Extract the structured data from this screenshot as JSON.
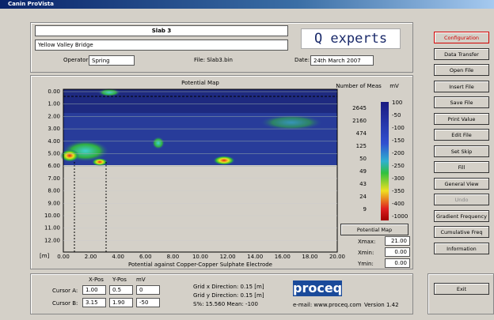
{
  "window": {
    "title": "Canin ProVista"
  },
  "header": {
    "title": "Slab 3",
    "structure": "Yellow Valley Bridge",
    "operator_label": "Operator:",
    "operator": "Spring",
    "file": "File: Slab3.bin",
    "date_label": "Date:",
    "date": "24th March 2007",
    "logo": "Q experts"
  },
  "map": {
    "title": "Potential Map",
    "yticks": [
      "0.00",
      "1.00",
      "2.00",
      "3.00",
      "4.00",
      "5.00",
      "6.00",
      "7.00",
      "8.00",
      "9.00",
      "10.00",
      "11.00",
      "12.00"
    ],
    "y_unit": "[m]",
    "xticks": [
      "0.00",
      "2.00",
      "4.00",
      "6.00",
      "8.00",
      "10.00",
      "12.00",
      "14.00",
      "16.00",
      "18.00",
      "20.00"
    ],
    "xlabel": "Potential against Copper-Copper Sulphate Electrode",
    "legend_count_title": "Number of Meas",
    "legend_unit_title": "mV",
    "counts": [
      "2645",
      "2160",
      "474",
      "125",
      "50",
      "49",
      "43",
      "24",
      "9"
    ],
    "scale": [
      "100",
      "-50",
      "-100",
      "-150",
      "-200",
      "-250",
      "-300",
      "-350",
      "-400",
      "-1000"
    ],
    "map_button": "Potential Map",
    "limits": [
      {
        "label": "Xmax:",
        "value": "21.00"
      },
      {
        "label": "Xmin:",
        "value": "0.00"
      },
      {
        "label": "Ymin:",
        "value": "0.00"
      }
    ]
  },
  "buttons": [
    "Configuration",
    "Data Transfer",
    "Open File",
    "Insert File",
    "Save File",
    "Print Value",
    "Edit File",
    "Set Skip",
    "Fill",
    "General View",
    "Undo",
    "Gradient Frequency",
    "Cumulative Freq",
    "Information"
  ],
  "exit": "Exit",
  "cursors": {
    "headers": [
      "X-Pos",
      "Y-Pos",
      "mV"
    ],
    "rows": [
      {
        "label": "Cursor A:",
        "values": [
          "1.00",
          "0.5",
          "0"
        ]
      },
      {
        "label": "Cursor B:",
        "values": [
          "3.15",
          "1.90",
          "-50"
        ]
      }
    ]
  },
  "stats": [
    "Grid x Direction: 0.15 [m]",
    "Grid y Direction: 0.15 [m]",
    "S%: 15.560   Mean: -100"
  ],
  "footer": {
    "logo": "proceq",
    "email": "e-mail: www.proceq.com",
    "version": "Version 1.42"
  }
}
